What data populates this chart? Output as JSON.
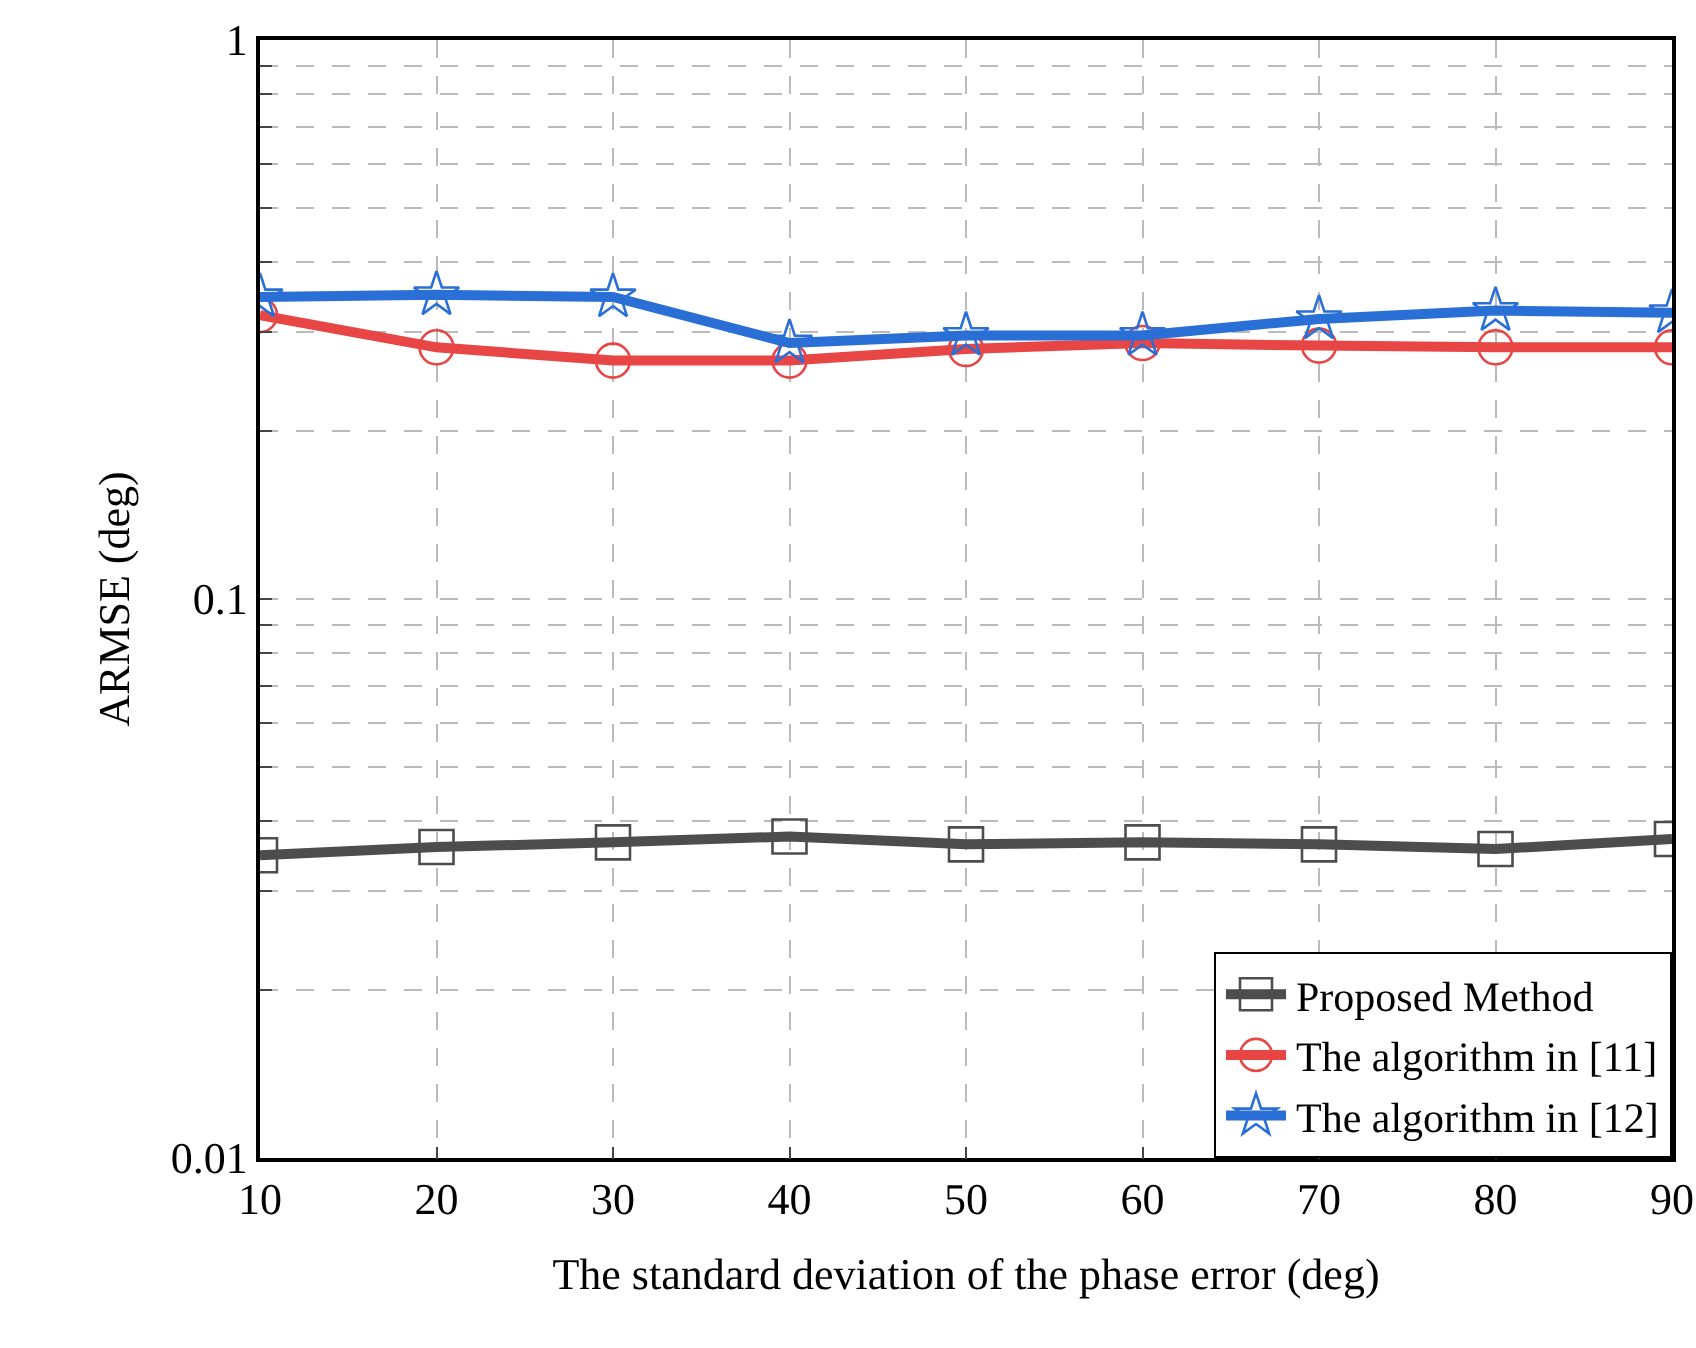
{
  "chart_data": {
    "type": "line",
    "xlabel": "The standard deviation of the phase error (deg)",
    "ylabel": "ARMSE (deg)",
    "x": [
      10,
      20,
      30,
      40,
      50,
      60,
      70,
      80,
      90
    ],
    "series": [
      {
        "name": "Proposed Method",
        "color": "#4d4d4d",
        "marker": "square",
        "values": [
          0.0348,
          0.036,
          0.0367,
          0.0376,
          0.0364,
          0.0367,
          0.0364,
          0.0357,
          0.0372
        ]
      },
      {
        "name": "The algorithm in [11]",
        "color": "#e84545",
        "marker": "circle",
        "values": [
          0.322,
          0.282,
          0.267,
          0.267,
          0.28,
          0.287,
          0.284,
          0.282,
          0.282
        ]
      },
      {
        "name": "The algorithm in [12]",
        "color": "#2a6fd6",
        "marker": "star",
        "values": [
          0.347,
          0.35,
          0.347,
          0.287,
          0.296,
          0.296,
          0.317,
          0.328,
          0.325
        ]
      }
    ],
    "log": true,
    "xlim": [
      10,
      90
    ],
    "xticks": [
      10,
      20,
      30,
      40,
      50,
      60,
      70,
      80,
      90
    ],
    "ylim": [
      0.01,
      1
    ],
    "yticks": [
      0.01,
      {
        "value": 0.02,
        "label": null
      },
      {
        "value": 0.03,
        "label": null
      },
      {
        "value": 0.04,
        "label": null
      },
      {
        "value": 0.05,
        "label": null
      },
      {
        "value": 0.06,
        "label": null
      },
      {
        "value": 0.07,
        "label": null
      },
      {
        "value": 0.08,
        "label": null
      },
      {
        "value": 0.09,
        "label": null
      },
      0.1,
      {
        "value": 0.2,
        "label": null
      },
      {
        "value": 0.3,
        "label": null
      },
      {
        "value": 0.4,
        "label": null
      },
      {
        "value": 0.5,
        "label": null
      },
      {
        "value": 0.6,
        "label": null
      },
      {
        "value": 0.7,
        "label": null
      },
      {
        "value": 0.8,
        "label": null
      },
      {
        "value": 0.9,
        "label": null
      },
      1
    ],
    "grid": true,
    "legend": "bottom right",
    "line_style": "solid"
  }
}
